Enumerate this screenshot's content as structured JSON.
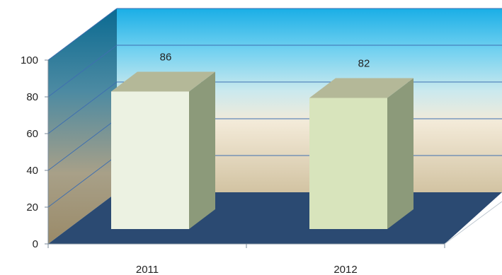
{
  "chart_data": {
    "type": "bar",
    "categories": [
      "2011",
      "2012"
    ],
    "values": [
      86,
      82
    ],
    "data_labels": [
      "86",
      "82"
    ],
    "ylim": [
      0,
      100
    ],
    "yticks": [
      0,
      20,
      40,
      60,
      80,
      100
    ],
    "title": "",
    "xlabel": "",
    "ylabel": "",
    "grid": true,
    "style": "3d",
    "colors": {
      "bar_front": [
        "#ecf2e2",
        "#d8e4bc"
      ],
      "bar_side": "#8c9a7a",
      "bar_top": "#b4b898",
      "floor": "#2b4a72",
      "wall_top": "#1fb4ea",
      "wall_mid": "#b6e0ea",
      "wall_bottom": "#d2c3a2",
      "gridline": "#3f6fb0"
    }
  }
}
